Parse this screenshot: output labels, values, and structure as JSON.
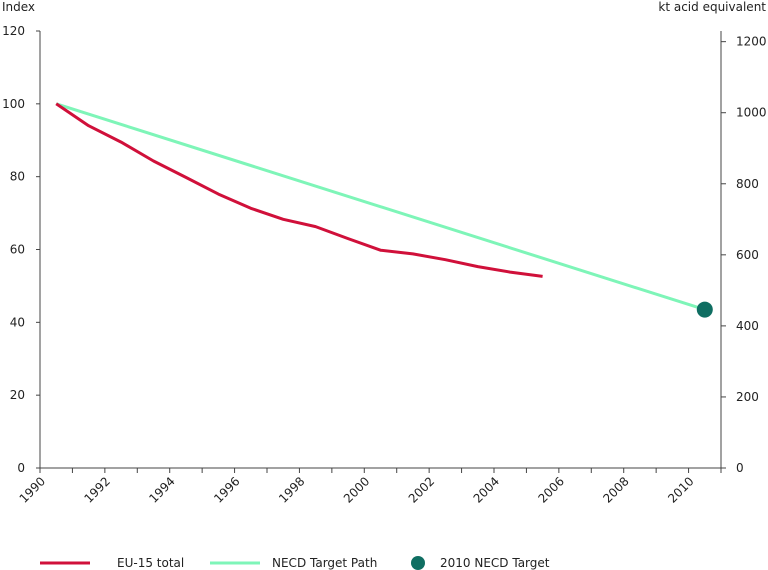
{
  "chart_data": {
    "type": "line",
    "title": "",
    "left_axis": {
      "label": "Index",
      "range": [
        0,
        120
      ],
      "ticks": [
        0,
        20,
        40,
        60,
        80,
        100,
        120
      ]
    },
    "right_axis": {
      "label": "kt acid equivalent",
      "range": [
        0,
        1230
      ],
      "ticks": [
        0,
        200,
        400,
        600,
        800,
        1000,
        1200
      ]
    },
    "x_axis": {
      "range": [
        1990,
        2011
      ],
      "ticks": [
        1990,
        1992,
        1994,
        1996,
        1998,
        2000,
        2002,
        2004,
        2006,
        2008,
        2010
      ]
    },
    "grid": false,
    "legend_position": "bottom",
    "series": [
      {
        "name": "EU-15 total",
        "color": "#d0103a",
        "x": [
          1990.5,
          1991.5,
          1992.5,
          1993.5,
          1994.5,
          1995.5,
          1996.5,
          1997.5,
          1998.5,
          1999.5,
          2000.5,
          2001.5,
          2002.5,
          2003.5,
          2004.5,
          2005.5
        ],
        "y": [
          100,
          94,
          89.5,
          84.3,
          79.8,
          75.2,
          71.3,
          68.3,
          66.3,
          63,
          59.8,
          58.8,
          57.2,
          55.3,
          53.8,
          52.6
        ]
      },
      {
        "name": "NECD Target Path",
        "color": "#7ef5b8",
        "x": [
          1990.5,
          2010.5
        ],
        "y": [
          100,
          43.5
        ]
      },
      {
        "name": "2010 NECD Target",
        "color": "#0f6e62",
        "marker": "circle",
        "x": [
          2010.5
        ],
        "y": [
          43.5
        ]
      }
    ]
  }
}
